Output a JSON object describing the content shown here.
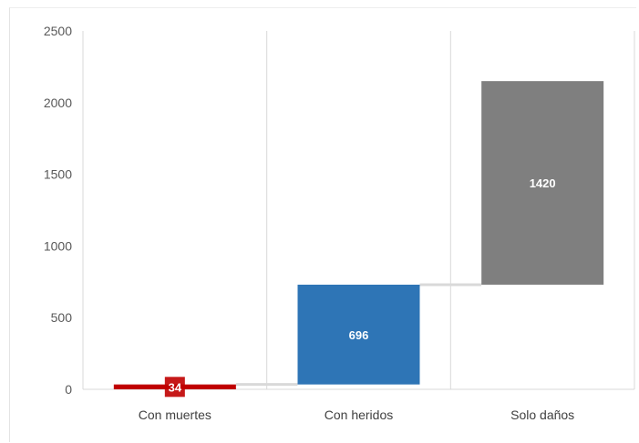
{
  "chart_data": {
    "type": "bar",
    "variant": "waterfall",
    "categories": [
      "Con muertes",
      "Con heridos",
      "Solo daños"
    ],
    "values": [
      34,
      696,
      1420
    ],
    "base": [
      0,
      34,
      730
    ],
    "colors": [
      "#c00000",
      "#2e75b6",
      "#7f7f7f"
    ],
    "data_labels": [
      "34",
      "696",
      "1420"
    ],
    "ylim": [
      0,
      2500
    ],
    "yticks": [
      0,
      500,
      1000,
      1500,
      2000,
      2500
    ],
    "ytick_labels": [
      "0",
      "500",
      "1000",
      "1500",
      "2000",
      "2500"
    ],
    "connector_color": "#d9d9d9",
    "grid": "vertical category separators",
    "legend": "none",
    "title": "",
    "xlabel": "",
    "ylabel": ""
  }
}
